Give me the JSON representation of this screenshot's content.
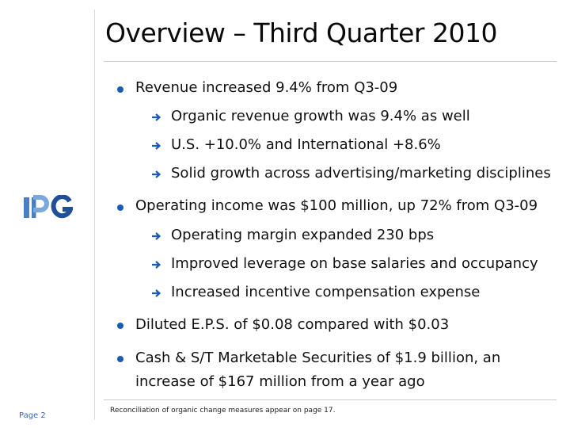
{
  "title": "Overview – Third Quarter 2010",
  "logo": {
    "text": "IPG",
    "brand_color": "#4a7fc0"
  },
  "bullet_color": "#1a5bb5",
  "bullets": [
    {
      "text": "Revenue increased 9.4% from Q3-09",
      "subs": [
        "Organic revenue growth was 9.4% as well",
        "U.S. +10.0% and International +8.6%",
        "Solid growth across advertising/marketing disciplines"
      ]
    },
    {
      "text": "Operating income was $100 million, up 72% from Q3-09",
      "subs": [
        "Operating margin expanded 230 bps",
        "Improved leverage on base salaries and occupancy",
        "Increased incentive compensation expense"
      ]
    },
    {
      "text": "Diluted E.P.S. of $0.08 compared with $0.03",
      "subs": []
    },
    {
      "text_line1": "Cash & S/T Marketable Securities of $1.9 billion, an",
      "text_line2": "increase of $167 million from a year ago",
      "subs": []
    }
  ],
  "footer": {
    "page": "Page 2",
    "note": "Reconciliation of organic change measures appear on page 17."
  }
}
